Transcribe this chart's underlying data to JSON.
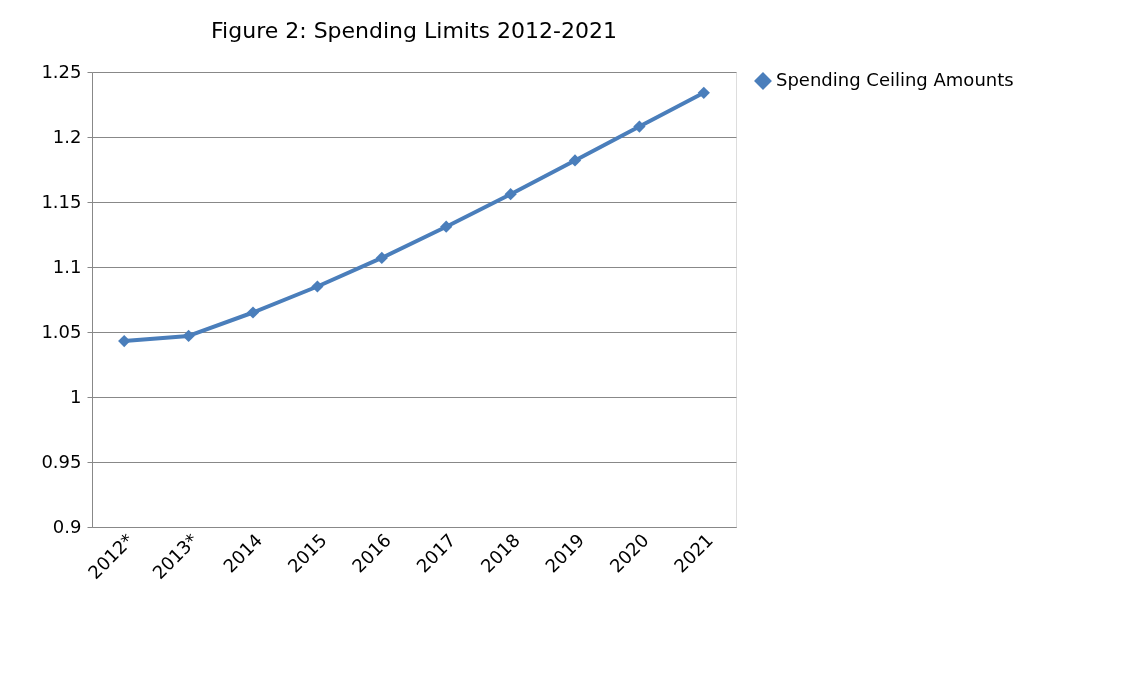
{
  "chart_data": {
    "type": "line",
    "title": "Figure 2: Spending Limits 2012-2021",
    "categories": [
      "2012*",
      "2013*",
      "2014",
      "2015",
      "2016",
      "2017",
      "2018",
      "2019",
      "2020",
      "2021"
    ],
    "series": [
      {
        "name": "Spending Ceiling Amounts",
        "color": "#4a7ebb",
        "values": [
          1.043,
          1.047,
          1.065,
          1.085,
          1.107,
          1.131,
          1.156,
          1.182,
          1.208,
          1.234
        ]
      }
    ],
    "ylim": [
      0.9,
      1.25
    ],
    "yticks": [
      0.9,
      0.95,
      1,
      1.05,
      1.1,
      1.15,
      1.2,
      1.25
    ],
    "grid": "y",
    "legend": "right",
    "marker": "diamond",
    "line_style": "solid"
  }
}
